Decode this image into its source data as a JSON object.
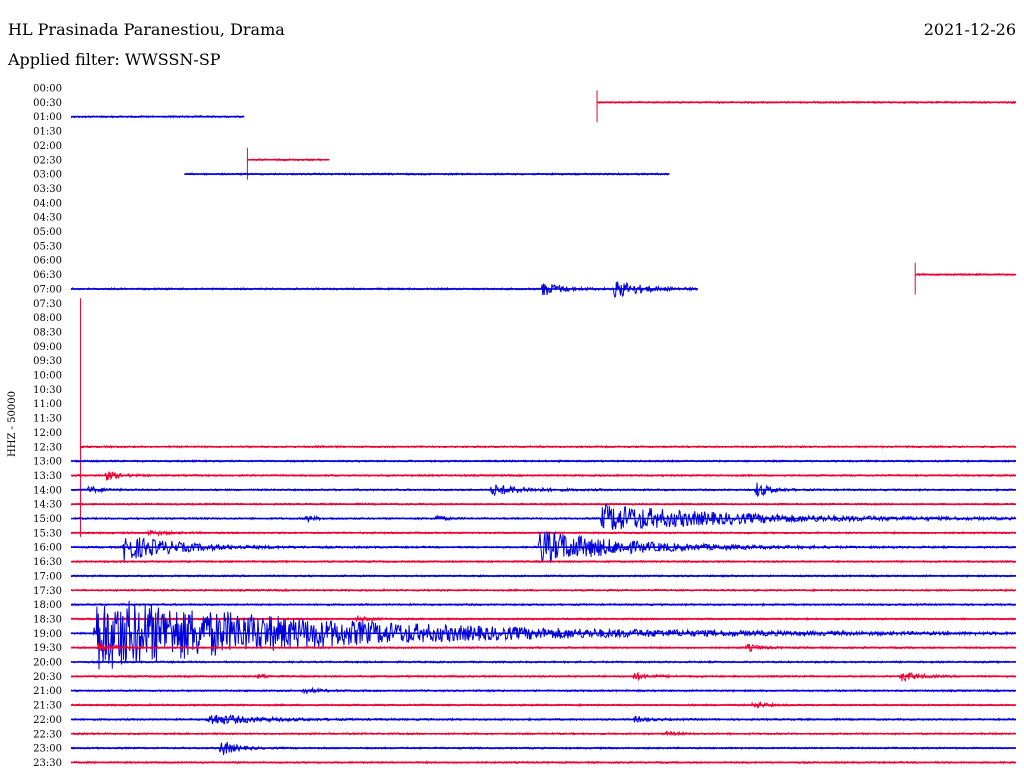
{
  "header": {
    "station": "HL Prasinada Paranestiou, Drama",
    "date": "2021-12-26",
    "filter": "Applied filter: WWSSN-SP"
  },
  "colors": {
    "blue": "#0000dd",
    "red": "#ee0033",
    "text": "#000000"
  },
  "chart_data": {
    "type": "line",
    "title": "",
    "ylabel": "HHZ - 50000",
    "xlim": [
      0,
      30
    ],
    "row_interval_minutes": 30,
    "rows": [
      "00:00",
      "00:30",
      "01:00",
      "01:30",
      "02:00",
      "02:30",
      "03:00",
      "03:30",
      "04:00",
      "04:30",
      "05:00",
      "05:30",
      "06:00",
      "06:30",
      "07:00",
      "07:30",
      "08:00",
      "08:30",
      "09:00",
      "09:30",
      "10:00",
      "10:30",
      "11:00",
      "11:30",
      "12:00",
      "12:30",
      "13:00",
      "13:30",
      "14:00",
      "14:30",
      "15:00",
      "15:30",
      "16:00",
      "16:30",
      "17:00",
      "17:30",
      "18:00",
      "18:30",
      "19:00",
      "19:30",
      "20:00",
      "20:30",
      "21:00",
      "21:30",
      "22:00",
      "22:30",
      "23:00",
      "23:30"
    ],
    "series_colors": [
      "blue",
      "red"
    ],
    "segments": [
      {
        "row": 1,
        "start": 16.7,
        "end": 30,
        "color": "red",
        "spike_at": 16.7
      },
      {
        "row": 2,
        "start": 0,
        "end": 5.5,
        "color": "blue"
      },
      {
        "row": 5,
        "start": 5.6,
        "end": 8.2,
        "color": "red",
        "spike_at": 5.6
      },
      {
        "row": 6,
        "start": 3.6,
        "end": 19.0,
        "color": "blue"
      },
      {
        "row": 13,
        "start": 26.8,
        "end": 30,
        "color": "red",
        "spike_at": 26.8
      },
      {
        "row": 14,
        "start": 0,
        "end": 19.9,
        "color": "blue"
      },
      {
        "row": 25,
        "start": 0.3,
        "end": 30,
        "color": "red",
        "spike_at": 0.3
      }
    ],
    "events": [
      {
        "row": 14,
        "at": 14.9,
        "amp": 8,
        "decay": 0.6
      },
      {
        "row": 14,
        "at": 17.2,
        "amp": 10,
        "decay": 0.8
      },
      {
        "row": 27,
        "at": 1.0,
        "amp": 6,
        "decay": 0.4
      },
      {
        "row": 28,
        "at": 0.5,
        "amp": 4,
        "decay": 0.4
      },
      {
        "row": 28,
        "at": 13.3,
        "amp": 6,
        "decay": 1.0
      },
      {
        "row": 28,
        "at": 21.7,
        "amp": 9,
        "decay": 0.4
      },
      {
        "row": 30,
        "at": 7.4,
        "amp": 4,
        "decay": 0.3
      },
      {
        "row": 30,
        "at": 11.5,
        "amp": 4,
        "decay": 0.3
      },
      {
        "row": 30,
        "at": 16.8,
        "amp": 14,
        "decay": 4.0
      },
      {
        "row": 31,
        "at": 2.4,
        "amp": 3,
        "decay": 0.5
      },
      {
        "row": 32,
        "at": 1.6,
        "amp": 14,
        "decay": 1.6
      },
      {
        "row": 32,
        "at": 14.8,
        "amp": 18,
        "decay": 2.5
      },
      {
        "row": 37,
        "at": 9.0,
        "amp": 3,
        "decay": 0.4
      },
      {
        "row": 38,
        "at": 0.7,
        "amp": 38,
        "decay": 7.0
      },
      {
        "row": 39,
        "at": 0.8,
        "amp": 6,
        "decay": 0.5
      },
      {
        "row": 39,
        "at": 21.4,
        "amp": 4,
        "decay": 0.4
      },
      {
        "row": 41,
        "at": 5.9,
        "amp": 4,
        "decay": 0.2
      },
      {
        "row": 41,
        "at": 17.8,
        "amp": 4,
        "decay": 0.5
      },
      {
        "row": 41,
        "at": 26.3,
        "amp": 6,
        "decay": 0.5
      },
      {
        "row": 42,
        "at": 7.3,
        "amp": 3,
        "decay": 0.5
      },
      {
        "row": 43,
        "at": 21.6,
        "amp": 5,
        "decay": 0.3
      },
      {
        "row": 44,
        "at": 4.3,
        "amp": 6,
        "decay": 1.4
      },
      {
        "row": 44,
        "at": 17.8,
        "amp": 3,
        "decay": 0.5
      },
      {
        "row": 45,
        "at": 18.8,
        "amp": 2,
        "decay": 0.4
      },
      {
        "row": 46,
        "at": 4.7,
        "amp": 10,
        "decay": 0.4
      }
    ]
  }
}
